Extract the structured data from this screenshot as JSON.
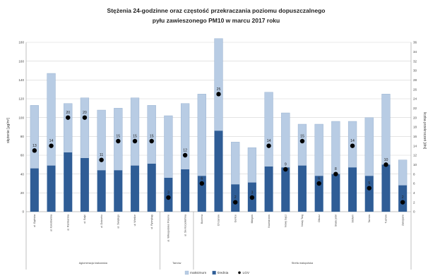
{
  "chart_data": {
    "type": "bar",
    "title_lines": [
      "Stężenia 24-godzinne  oraz częstość przekraczania poziomu dopuszczalnego",
      "pyłu zawieszonego PM10 w marcu 2017 roku"
    ],
    "ylabel": "stężenie [µg/m³]",
    "y2label": "liczba przekroczeń [dni]",
    "ylim": [
      0,
      180
    ],
    "yticks": [
      0,
      20,
      40,
      60,
      80,
      100,
      120,
      140,
      160,
      180
    ],
    "y2lim": [
      0,
      36
    ],
    "y2ticks": [
      0,
      2,
      4,
      6,
      8,
      10,
      12,
      14,
      16,
      18,
      20,
      22,
      24,
      26,
      28,
      30,
      32,
      34,
      36
    ],
    "categories": [
      "ul. Ogińska",
      "ul. Kokotowska",
      "ul. Ranikarska",
      "ul. Bajki",
      "ul. Dobrohic",
      "ul. Świętego",
      "ul. Wielkie",
      "ul. Rybnykąy",
      "ul. Wiłkopolskiei Polonie",
      "ul. Św Korpotelnika",
      "Bochnia",
      "Chrzanów",
      "Gorlice",
      "Miegów",
      "Nowokrzów",
      "Nowy Sącz",
      "Nowy Targ",
      "Olkusz",
      "Skała pickl",
      "Stotwin",
      "Tarnów",
      "Tuchów",
      "Zakopane"
    ],
    "groups": [
      {
        "label": "Aglomeracja krakowska",
        "count": 8
      },
      {
        "label": "Tarnów",
        "count": 2
      },
      {
        "label": "Strefa małopolska",
        "count": 13
      }
    ],
    "series": [
      {
        "name": "maksimum",
        "color": "#b8cce4",
        "values": [
          113,
          147,
          115,
          121,
          108,
          110,
          121,
          113,
          102,
          115,
          125,
          184,
          74,
          68,
          127,
          105,
          93,
          93,
          96,
          96,
          100,
          125,
          55
        ]
      },
      {
        "name": "średnia",
        "color": "#2f5d96",
        "values": [
          46,
          49,
          63,
          57,
          44,
          44,
          49,
          51,
          36,
          45,
          38,
          86,
          29,
          31,
          48,
          47,
          49,
          38,
          40,
          47,
          38,
          50,
          28
        ]
      },
      {
        "name": "LGV",
        "color": "#000000",
        "axis": "right",
        "values": [
          13,
          14,
          20,
          20,
          11,
          15,
          15,
          15,
          3,
          12,
          6,
          25,
          2,
          3,
          14,
          9,
          15,
          6,
          8,
          14,
          5,
          10,
          2
        ]
      }
    ],
    "point_labels": [
      13,
      14,
      20,
      20,
      11,
      15,
      15,
      15,
      3,
      12,
      6,
      25,
      2,
      3,
      14,
      9,
      15,
      6,
      8,
      14,
      5,
      10,
      2
    ],
    "legend_position": "bottom",
    "grid": true
  }
}
